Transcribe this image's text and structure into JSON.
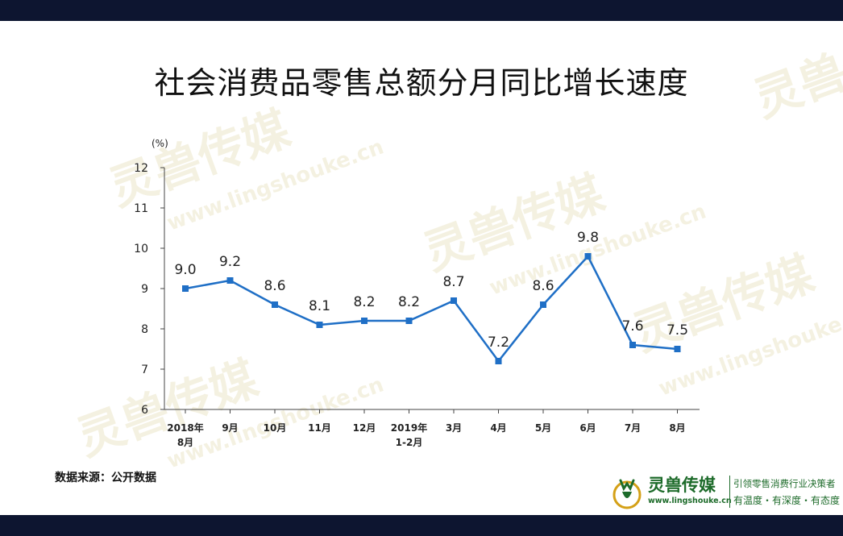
{
  "title": "社会消费品零售总额分月同比增长速度",
  "source_note": "数据来源：公开数据",
  "watermark": {
    "name": "灵兽传媒",
    "url": "www.lingshouke.cn"
  },
  "logo": {
    "name": "灵兽传媒",
    "url": "www.lingshouke.cn",
    "tagline": "引领零售消费行业决策者",
    "slogan": "有温度・有深度・有态度"
  },
  "colors": {
    "line": "#1f6fc6",
    "bars": "#0d1530",
    "logo": "#1d6b2a"
  },
  "chart_data": {
    "type": "line",
    "ylabel": "(%)",
    "ylim": [
      6,
      12
    ],
    "yticks": [
      6,
      7,
      8,
      9,
      10,
      11,
      12
    ],
    "grid": false,
    "categories": [
      [
        "2018年",
        "8月"
      ],
      [
        "9月"
      ],
      [
        "10月"
      ],
      [
        "11月"
      ],
      [
        "12月"
      ],
      [
        "2019年",
        "1-2月"
      ],
      [
        "3月"
      ],
      [
        "4月"
      ],
      [
        "5月"
      ],
      [
        "6月"
      ],
      [
        "7月"
      ],
      [
        "8月"
      ]
    ],
    "values": [
      9.0,
      9.2,
      8.6,
      8.1,
      8.2,
      8.2,
      8.7,
      7.2,
      8.6,
      9.8,
      7.6,
      7.5
    ],
    "value_labels": [
      "9.0",
      "9.2",
      "8.6",
      "8.1",
      "8.2",
      "8.2",
      "8.7",
      "7.2",
      "8.6",
      "9.8",
      "7.6",
      "7.5"
    ]
  }
}
